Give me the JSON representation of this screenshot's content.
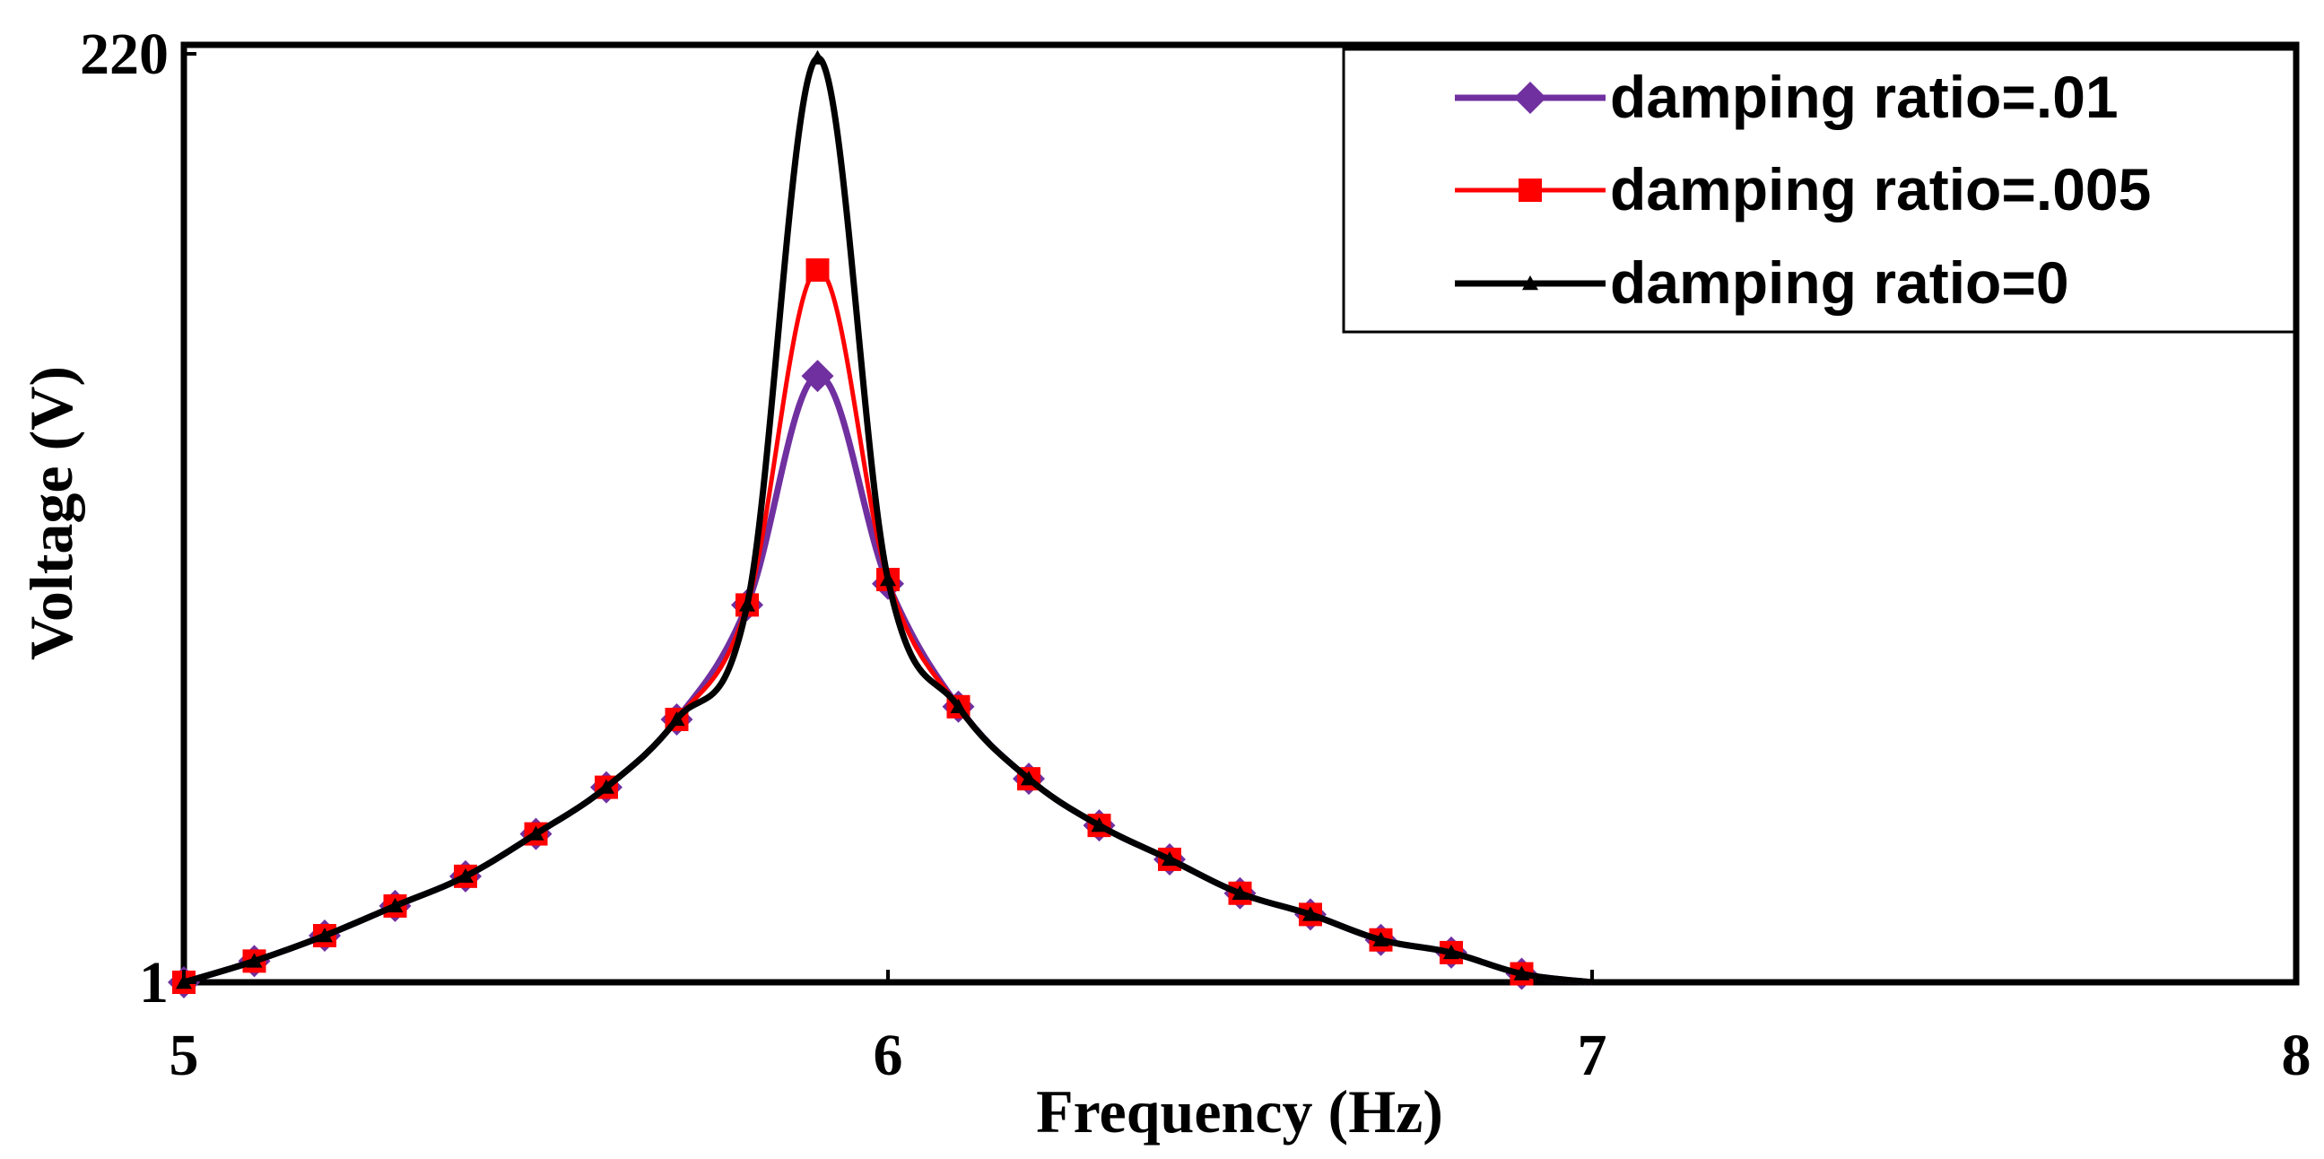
{
  "chart_data": {
    "type": "line",
    "title": "",
    "xlabel": "Frequency (Hz)",
    "ylabel": "Voltage (V)",
    "xlim": [
      5,
      8
    ],
    "ylim": [
      1,
      220
    ],
    "xticks": [
      "5",
      "6",
      "7",
      "8"
    ],
    "yticks": [
      "1",
      "220"
    ],
    "legend_position": "top-right",
    "x": [
      5.0,
      5.1,
      5.2,
      5.3,
      5.4,
      5.5,
      5.6,
      5.7,
      5.8,
      5.9,
      6.0,
      6.1,
      6.2,
      6.3,
      6.4,
      6.5,
      6.6,
      6.7,
      6.8,
      6.9,
      7.0
    ],
    "series": [
      {
        "name": "damping ratio=.01",
        "color": "#7030a0",
        "marker": "diamond",
        "values": [
          1,
          6,
          12,
          19,
          26,
          36,
          47,
          63,
          90,
          144,
          95,
          66,
          49,
          38,
          30,
          22,
          17,
          11,
          8,
          3,
          1
        ]
      },
      {
        "name": "damping ratio=.005",
        "color": "#ff0000",
        "marker": "square",
        "values": [
          1,
          6,
          12,
          19,
          26,
          36,
          47,
          63,
          90,
          169,
          96,
          66,
          49,
          38,
          30,
          22,
          17,
          11,
          8,
          3,
          1
        ]
      },
      {
        "name": "damping ratio=0",
        "color": "#000000",
        "marker": "triangle",
        "values": [
          1,
          6,
          12,
          19,
          26,
          36,
          47,
          63,
          90,
          219,
          96,
          66,
          49,
          38,
          30,
          22,
          17,
          11,
          8,
          3,
          1
        ]
      }
    ]
  }
}
